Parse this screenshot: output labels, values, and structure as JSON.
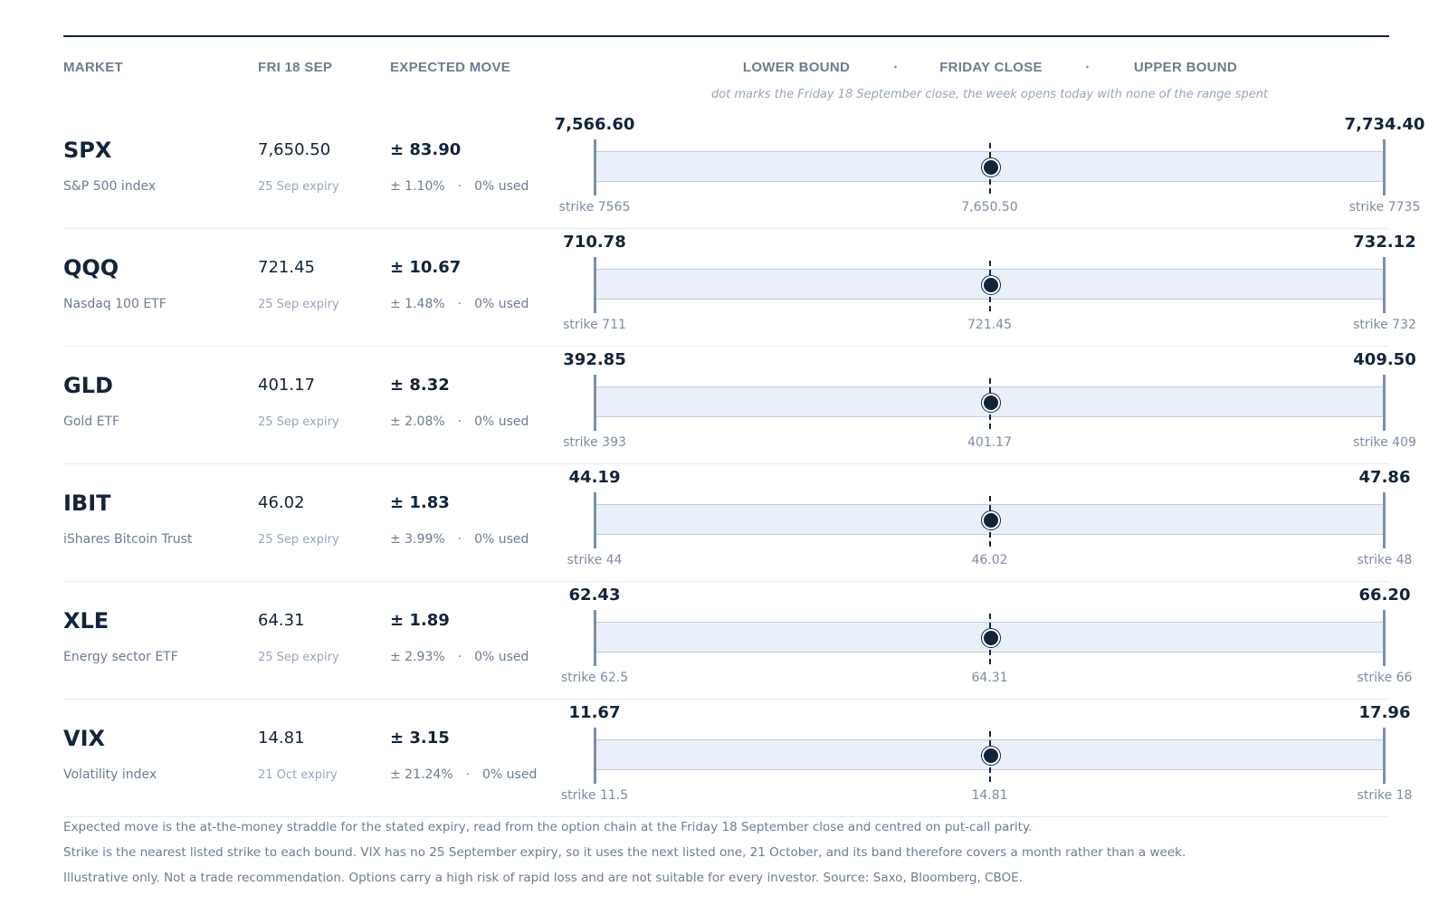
{
  "header": {
    "columns": [
      "MARKET",
      "FRI 18 SEP",
      "EXPECTED MOVE"
    ],
    "range_columns": [
      "LOWER BOUND",
      "FRIDAY CLOSE",
      "UPPER BOUND"
    ],
    "separator": "·",
    "note": "dot marks the Friday 18 September close, the week opens today with none of the range spent"
  },
  "rows": [
    {
      "ticker": "SPX",
      "name": "S&P 500 index",
      "close": "7,650.50",
      "expiry": "25 Sep expiry",
      "move": "± 83.90",
      "move_pct": "± 1.10%",
      "used": "0% used",
      "lower": "7,566.60",
      "upper": "7,734.40",
      "lower_strike": "strike 7565",
      "upper_strike": "strike 7735"
    },
    {
      "ticker": "QQQ",
      "name": "Nasdaq 100 ETF",
      "close": "721.45",
      "expiry": "25 Sep expiry",
      "move": "± 10.67",
      "move_pct": "± 1.48%",
      "used": "0% used",
      "lower": "710.78",
      "upper": "732.12",
      "lower_strike": "strike 711",
      "upper_strike": "strike 732"
    },
    {
      "ticker": "GLD",
      "name": "Gold ETF",
      "close": "401.17",
      "expiry": "25 Sep expiry",
      "move": "± 8.32",
      "move_pct": "± 2.08%",
      "used": "0% used",
      "lower": "392.85",
      "upper": "409.50",
      "lower_strike": "strike 393",
      "upper_strike": "strike 409"
    },
    {
      "ticker": "IBIT",
      "name": "iShares Bitcoin Trust",
      "close": "46.02",
      "expiry": "25 Sep expiry",
      "move": "± 1.83",
      "move_pct": "± 3.99%",
      "used": "0% used",
      "lower": "44.19",
      "upper": "47.86",
      "lower_strike": "strike 44",
      "upper_strike": "strike 48"
    },
    {
      "ticker": "XLE",
      "name": "Energy sector ETF",
      "close": "64.31",
      "expiry": "25 Sep expiry",
      "move": "± 1.89",
      "move_pct": "± 2.93%",
      "used": "0% used",
      "lower": "62.43",
      "upper": "66.20",
      "lower_strike": "strike 62.5",
      "upper_strike": "strike 66"
    },
    {
      "ticker": "VIX",
      "name": "Volatility index",
      "close": "14.81",
      "expiry": "21 Oct expiry",
      "move": "± 3.15",
      "move_pct": "± 21.24%",
      "used": "0% used",
      "lower": "11.67",
      "upper": "17.96",
      "lower_strike": "strike 11.5",
      "upper_strike": "strike 18"
    }
  ],
  "footnotes": [
    "Expected move is the at-the-money straddle for the stated expiry, read from the option chain at the Friday 18 September close and centred on put-call parity.",
    "Strike is the nearest listed strike to each bound. VIX has no 25 September expiry, so it uses the next listed one, 21 October, and its band therefore covers a month rather than a week.",
    "Illustrative only. Not a trade recommendation. Options carry a high risk of rapid loss and are not suitable for every investor. Source: Saxo, Bloomberg, CBOE."
  ]
}
